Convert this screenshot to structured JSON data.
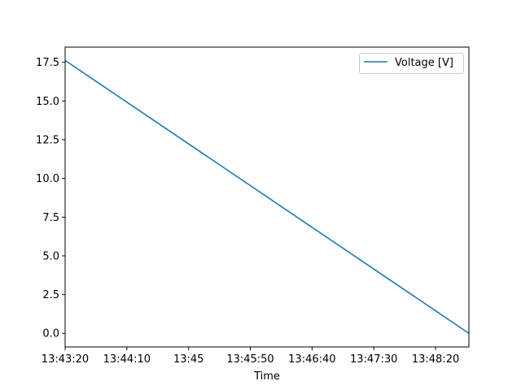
{
  "chart_data": {
    "type": "line",
    "title": "",
    "xlabel": "Time",
    "ylabel": "",
    "x_tick_labels": [
      "13:43:20",
      "13:44:10",
      "13:45",
      "13:45:50",
      "13:46:40",
      "13:47:30",
      "13:48:20"
    ],
    "y_tick_labels": [
      "0.0",
      "2.5",
      "5.0",
      "7.5",
      "10.0",
      "12.5",
      "15.0",
      "17.5"
    ],
    "y_ticks": [
      0,
      2.5,
      5,
      7.5,
      10,
      12.5,
      15,
      17.5
    ],
    "xlim": [
      "13:43:20",
      "13:48:47"
    ],
    "ylim": [
      -0.88,
      18.48
    ],
    "grid": false,
    "legend_position": "top-right",
    "series": [
      {
        "name": "Voltage [V]",
        "color": "#1f77b4",
        "points": [
          {
            "x": "13:43:20",
            "y": 17.62
          },
          {
            "x": "13:48:47",
            "y": 0.0
          }
        ]
      }
    ]
  }
}
